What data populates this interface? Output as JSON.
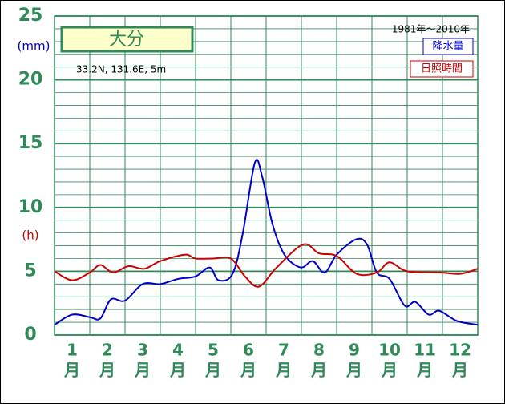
{
  "chart_data": {
    "type": "line",
    "title": "大分",
    "subtitle": "33.2N,  131.6E,  5m",
    "period": "1981年〜2010年",
    "y_label": "(mm)",
    "y2_label": "(h)",
    "x_unit": "月",
    "xlim": [
      0.5,
      12.5
    ],
    "xticks": [
      1,
      2,
      3,
      4,
      5,
      6,
      7,
      8,
      9,
      10,
      11,
      12
    ],
    "ylim": [
      0,
      25
    ],
    "yticks": [
      0,
      5,
      10,
      15,
      20,
      25
    ],
    "grid": true,
    "series": [
      {
        "name": "降水量",
        "color": "#0000cc",
        "x": [
          0.5,
          1.0,
          1.5,
          1.8,
          2.1,
          2.5,
          3.0,
          3.5,
          4.0,
          4.5,
          4.9,
          5.15,
          5.55,
          5.84,
          6.18,
          6.39,
          6.68,
          7.02,
          7.48,
          7.82,
          8.16,
          8.5,
          9.05,
          9.36,
          9.64,
          10.0,
          10.43,
          10.73,
          11.11,
          11.41,
          11.91,
          12.5
        ],
        "values": [
          0.8,
          1.6,
          1.4,
          1.3,
          2.8,
          2.7,
          4.0,
          4.0,
          4.4,
          4.6,
          5.3,
          4.3,
          4.8,
          8.0,
          13.5,
          12.4,
          8.7,
          6.3,
          5.3,
          5.8,
          4.9,
          6.3,
          7.5,
          7.1,
          4.9,
          4.4,
          2.3,
          2.6,
          1.6,
          1.9,
          1.1,
          0.8
        ]
      },
      {
        "name": "日照時間",
        "color": "#cc0000",
        "x": [
          0.5,
          1.0,
          1.5,
          1.8,
          2.16,
          2.6,
          3.05,
          3.5,
          4.2,
          4.5,
          5.0,
          5.5,
          5.9,
          6.3,
          6.8,
          7.55,
          8.0,
          8.5,
          9.07,
          9.64,
          10.0,
          10.5,
          11.45,
          12.0,
          12.5
        ],
        "values": [
          5.0,
          4.3,
          4.9,
          5.5,
          4.9,
          5.4,
          5.2,
          5.8,
          6.3,
          6.0,
          6.0,
          6.0,
          4.6,
          3.8,
          5.3,
          7.1,
          6.4,
          6.2,
          4.8,
          4.9,
          5.7,
          5.0,
          4.9,
          4.8,
          5.2
        ]
      }
    ]
  }
}
